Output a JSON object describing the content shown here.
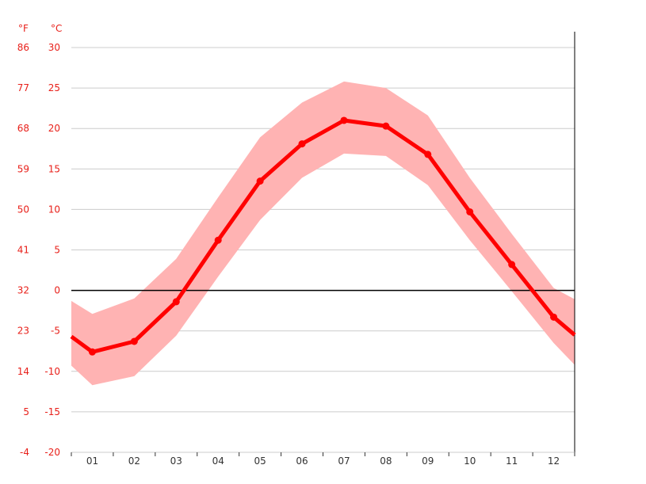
{
  "colors": {
    "line": "#ff0000",
    "band": "#ffb3b3",
    "axis_text": "#e8201a",
    "grid": "#cccccc",
    "zero_line": "#000000"
  },
  "chart_data": {
    "type": "line",
    "categories": [
      "01",
      "02",
      "03",
      "04",
      "05",
      "06",
      "07",
      "08",
      "09",
      "10",
      "11",
      "12"
    ],
    "series": [
      {
        "values": [
          -7.6,
          -6.3,
          -1.4,
          6.2,
          13.5,
          18.1,
          21.0,
          20.3,
          16.8,
          9.7,
          3.2,
          -3.3
        ]
      }
    ],
    "band": {
      "lower": [
        -11.7,
        -10.6,
        -5.6,
        1.7,
        8.7,
        13.9,
        16.9,
        16.6,
        13.0,
        6.2,
        -0.1,
        -6.5
      ],
      "upper": [
        -2.9,
        -1.0,
        3.9,
        11.5,
        18.9,
        23.2,
        25.8,
        25.0,
        21.6,
        13.9,
        7.0,
        0.3
      ]
    },
    "edge_values": {
      "start": {
        "line": -5.7,
        "lower": -9.3,
        "upper": -1.3
      },
      "end": {
        "line": -5.5,
        "lower": -9.2,
        "upper": -1.1
      }
    },
    "ylim": [
      -20,
      30
    ],
    "y_ticks_c": [
      "30",
      "25",
      "20",
      "15",
      "10",
      "5",
      "0",
      "-5",
      "-10",
      "-15",
      "-20"
    ],
    "y_ticks_f": [
      "86",
      "77",
      "68",
      "59",
      "50",
      "41",
      "32",
      "23",
      "14",
      "5",
      "-4"
    ],
    "unit_f": "°F",
    "unit_c": "°C",
    "grid": true
  }
}
